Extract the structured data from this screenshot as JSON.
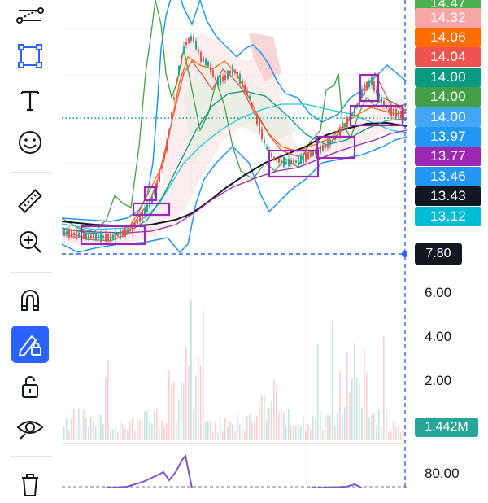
{
  "toolbar": {
    "tools": [
      {
        "name": "trend-line-tools-icon"
      },
      {
        "name": "rectangle-tool-icon"
      },
      {
        "name": "text-tool-icon"
      },
      {
        "name": "emoji-tool-icon"
      },
      {
        "name": "ruler-icon"
      },
      {
        "name": "zoom-in-icon"
      },
      {
        "name": "magnet-icon"
      },
      {
        "name": "lock-drawing-icon"
      },
      {
        "name": "unlock-icon"
      },
      {
        "name": "eye-icon"
      },
      {
        "name": "trash-icon"
      }
    ],
    "accent_color": "#2962ff"
  },
  "price_scale": {
    "tags": [
      {
        "label": "14.47",
        "color": "#4caf50"
      },
      {
        "label": "14.32",
        "color": "#f7a5a5"
      },
      {
        "label": "14.06",
        "color": "#ff6d00"
      },
      {
        "label": "14.04",
        "color": "#ef5350"
      },
      {
        "label": "14.00",
        "color": "#089981"
      },
      {
        "label": "14.00",
        "color": "#43a047"
      },
      {
        "label": "14.00",
        "color": "#42a5f5"
      },
      {
        "label": "13.97",
        "color": "#2196f3"
      },
      {
        "label": "13.77",
        "color": "#9c27b0"
      },
      {
        "label": "13.46",
        "color": "#2196f3"
      },
      {
        "label": "13.43",
        "color": "#131722"
      },
      {
        "label": "13.12",
        "color": "#00bcd4"
      }
    ],
    "crosshair_price": "7.80"
  },
  "volume_scale": {
    "labels": [
      "6.00",
      "4.00",
      "2.00"
    ],
    "volume_tag": "1.442M"
  },
  "indicator_scale": {
    "labels": [
      "80.00"
    ]
  }
}
